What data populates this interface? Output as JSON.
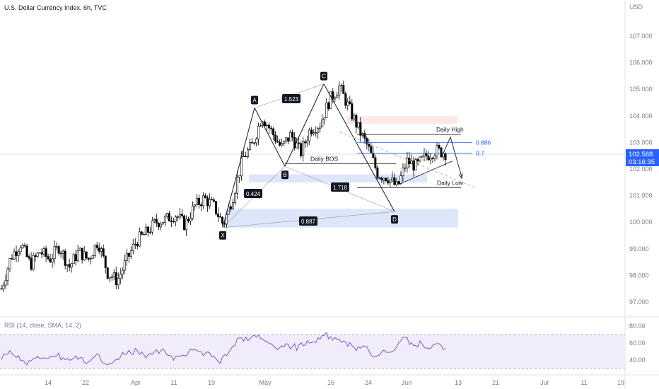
{
  "header": {
    "title": "U.S. Dollar Currency Index, 6h, TVC",
    "currency": "USD"
  },
  "price_scale": {
    "ticks": [
      "107.000",
      "106.000",
      "105.000",
      "104.000",
      "103.000",
      "102.000",
      "101.000",
      "100.000",
      "99.000",
      "98.000",
      "97.000"
    ],
    "current_price": "102.568",
    "countdown": "03:16:35",
    "accent": "#2962ff"
  },
  "time_axis": {
    "ticks": [
      "14",
      "22",
      "Apr",
      "11",
      "19",
      "May",
      "16",
      "24",
      "Jun",
      "13",
      "21",
      "Jul",
      "11",
      "19"
    ]
  },
  "rsi": {
    "label": "RSI (14, close, SMA, 14, 2)",
    "ticks": [
      "80.00",
      "60.00",
      "40.00"
    ],
    "color": "#7e57c2"
  },
  "pattern": {
    "points": [
      {
        "label": "X",
        "price": 99.8
      },
      {
        "label": "A",
        "price": 104.3
      },
      {
        "label": "B",
        "price": 102.1
      },
      {
        "label": "C",
        "price": 105.2
      },
      {
        "label": "D",
        "price": 100.4
      }
    ],
    "ratios": [
      "1.523",
      "0.424",
      "1.718",
      "0.887"
    ]
  },
  "annotations": {
    "daily_high": "Daily High",
    "daily_low": "Daily Low",
    "daily_bos": "Daily BOS",
    "fib_886": "0.886",
    "fib_07": "0.7"
  },
  "chart_data": {
    "type": "candlestick",
    "symbol": "U.S. Dollar Currency Index",
    "timeframe": "6h",
    "source": "TVC",
    "ylim": [
      96.5,
      107.5
    ],
    "key_levels": {
      "daily_high": 103.3,
      "daily_low": 101.3,
      "daily_bos": 102.2,
      "fib_0_886": 103.0,
      "fib_0_7": 102.6
    },
    "close_path": [
      97.5,
      98.7,
      99.2,
      98.4,
      98.9,
      98.6,
      99.1,
      98.3,
      98.9,
      98.6,
      99.3,
      98.1,
      97.8,
      98.6,
      99.3,
      99.6,
      100.0,
      100.1,
      100.3,
      99.9,
      100.6,
      100.9,
      100.6,
      99.9,
      101.0,
      102.4,
      102.9,
      104.0,
      103.4,
      102.8,
      103.3,
      102.6,
      103.5,
      103.7,
      104.6,
      105.1,
      104.3,
      103.5,
      102.8,
      101.8,
      101.7,
      101.3,
      102.3,
      102.1,
      102.5,
      102.7,
      102.6
    ]
  }
}
